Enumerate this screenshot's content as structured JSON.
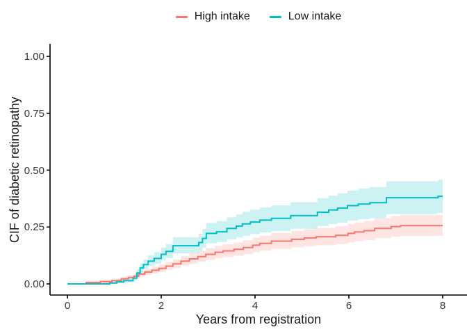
{
  "chart_data": {
    "type": "line",
    "subtype": "step-function-cumulative-incidence-with-confidence-bands",
    "title": "",
    "xlabel": "Years from registration",
    "ylabel": "CIF of diabetic retinopathy",
    "xlim": [
      0,
      8
    ],
    "ylim": [
      0,
      1
    ],
    "grid": "off",
    "legend_position": "top-center",
    "x_ticks": [
      {
        "label": "0",
        "value": 0
      },
      {
        "label": "2",
        "value": 2
      },
      {
        "label": "4",
        "value": 4
      },
      {
        "label": "6",
        "value": 6
      },
      {
        "label": "8",
        "value": 8
      }
    ],
    "y_ticks": [
      {
        "label": "0.00",
        "value": 0.0
      },
      {
        "label": "0.25",
        "value": 0.25
      },
      {
        "label": "0.50",
        "value": 0.5
      },
      {
        "label": "0.75",
        "value": 0.75
      },
      {
        "label": "1.00",
        "value": 1.0
      }
    ],
    "series": [
      {
        "name": "High intake",
        "color": "#F8766D",
        "band_color": "rgba(248,118,109,0.20)",
        "x": [
          0,
          0.4,
          0.7,
          0.95,
          1.15,
          1.3,
          1.42,
          1.52,
          1.65,
          1.8,
          1.95,
          2.1,
          2.25,
          2.42,
          2.6,
          2.78,
          2.95,
          3.15,
          3.32,
          3.55,
          3.75,
          3.95,
          4.1,
          4.35,
          4.78,
          5.05,
          5.3,
          5.72,
          5.98,
          6.12,
          6.32,
          6.55,
          6.9,
          7.1,
          8.0
        ],
        "y": [
          0,
          0.006,
          0.01,
          0.015,
          0.022,
          0.028,
          0.034,
          0.043,
          0.052,
          0.06,
          0.068,
          0.078,
          0.088,
          0.1,
          0.11,
          0.12,
          0.13,
          0.139,
          0.145,
          0.152,
          0.16,
          0.17,
          0.178,
          0.188,
          0.196,
          0.202,
          0.207,
          0.213,
          0.222,
          0.228,
          0.234,
          0.244,
          0.252,
          0.256,
          0.256
        ],
        "lower": [
          0,
          0.001,
          0.004,
          0.009,
          0.014,
          0.02,
          0.025,
          0.032,
          0.04,
          0.046,
          0.053,
          0.062,
          0.07,
          0.08,
          0.088,
          0.097,
          0.105,
          0.113,
          0.118,
          0.124,
          0.13,
          0.139,
          0.146,
          0.154,
          0.161,
          0.166,
          0.17,
          0.175,
          0.182,
          0.188,
          0.193,
          0.201,
          0.208,
          0.211,
          0.211
        ],
        "upper": [
          0,
          0.013,
          0.018,
          0.023,
          0.032,
          0.038,
          0.045,
          0.056,
          0.066,
          0.076,
          0.085,
          0.096,
          0.108,
          0.122,
          0.134,
          0.145,
          0.157,
          0.167,
          0.174,
          0.182,
          0.192,
          0.203,
          0.212,
          0.224,
          0.233,
          0.24,
          0.246,
          0.253,
          0.264,
          0.27,
          0.277,
          0.289,
          0.298,
          0.303,
          0.303
        ]
      },
      {
        "name": "Low intake",
        "color": "#00BFC4",
        "band_color": "rgba(0,191,196,0.20)",
        "x": [
          0,
          0.9,
          1.05,
          1.2,
          1.4,
          1.48,
          1.55,
          1.62,
          1.72,
          1.85,
          2.0,
          2.1,
          2.25,
          2.8,
          2.88,
          2.96,
          3.18,
          3.4,
          3.6,
          3.73,
          3.9,
          4.1,
          4.35,
          4.76,
          5.33,
          5.57,
          5.76,
          5.97,
          6.2,
          6.45,
          6.8,
          7.9,
          8.0
        ],
        "y": [
          0,
          0.004,
          0.009,
          0.014,
          0.025,
          0.048,
          0.07,
          0.085,
          0.1,
          0.112,
          0.13,
          0.143,
          0.168,
          0.182,
          0.2,
          0.222,
          0.229,
          0.244,
          0.254,
          0.264,
          0.272,
          0.28,
          0.288,
          0.3,
          0.315,
          0.325,
          0.333,
          0.344,
          0.351,
          0.357,
          0.379,
          0.385,
          0.385
        ],
        "lower": [
          0,
          0.0,
          0.003,
          0.007,
          0.017,
          0.035,
          0.053,
          0.066,
          0.078,
          0.088,
          0.103,
          0.113,
          0.134,
          0.145,
          0.16,
          0.178,
          0.184,
          0.196,
          0.204,
          0.212,
          0.219,
          0.226,
          0.232,
          0.242,
          0.254,
          0.263,
          0.269,
          0.278,
          0.284,
          0.289,
          0.307,
          0.312,
          0.312
        ],
        "upper": [
          0,
          0.013,
          0.019,
          0.024,
          0.037,
          0.064,
          0.09,
          0.107,
          0.125,
          0.139,
          0.16,
          0.175,
          0.205,
          0.221,
          0.242,
          0.268,
          0.276,
          0.293,
          0.305,
          0.317,
          0.326,
          0.336,
          0.345,
          0.359,
          0.377,
          0.388,
          0.398,
          0.41,
          0.419,
          0.426,
          0.451,
          0.458,
          0.458
        ]
      }
    ],
    "axis_color": "#000000",
    "tick_text_color": "#333333"
  }
}
